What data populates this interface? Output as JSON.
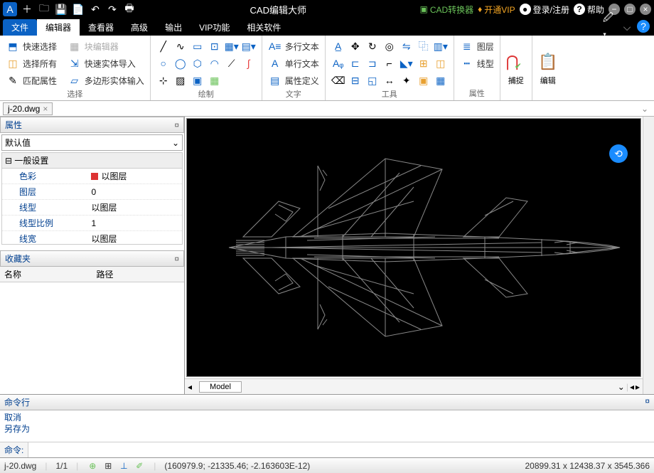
{
  "title": "CAD编辑大师",
  "titlebar_links": {
    "converter": "CAD转换器",
    "vip": "开通VIP",
    "login": "登录/注册",
    "help": "帮助"
  },
  "menu": {
    "tabs": [
      "文件",
      "编辑器",
      "查看器",
      "高级",
      "输出",
      "VIP功能",
      "相关软件"
    ],
    "active_index": 0,
    "selected_index": 1
  },
  "ribbon": {
    "select": {
      "name": "选择",
      "quick_select": "快速选择",
      "select_all": "选择所有",
      "match_prop": "匹配属性",
      "block_editor": "块编辑器",
      "quick_import": "快速实体导入",
      "poly_input": "多边形实体输入"
    },
    "draw": {
      "name": "绘制"
    },
    "text": {
      "name": "文字",
      "multiline": "多行文本",
      "singleline": "单行文本",
      "attr_def": "属性定义"
    },
    "tools": {
      "name": "工具"
    },
    "props": {
      "name": "属性",
      "layer": "图层",
      "linetype": "线型"
    },
    "snap": {
      "name": "捕捉"
    },
    "edit": {
      "name": "编辑"
    }
  },
  "file_tab": "j-20.dwg",
  "panels": {
    "props_title": "属性",
    "default_val": "默认值",
    "section": "一般设置",
    "rows": [
      {
        "k": "色彩",
        "v": "以图层",
        "swatch": true
      },
      {
        "k": "图层",
        "v": "0"
      },
      {
        "k": "线型",
        "v": "以图层"
      },
      {
        "k": "线型比例",
        "v": "1"
      },
      {
        "k": "线宽",
        "v": "以图层"
      }
    ],
    "fav_title": "收藏夹",
    "fav_cols": [
      "名称",
      "路径"
    ]
  },
  "model_tab": "Model",
  "cmd": {
    "title": "命令行",
    "history": [
      "取消",
      "另存为"
    ],
    "prompt": "命令:"
  },
  "status": {
    "file": "j-20.dwg",
    "page": "1/1",
    "coords": "(160979.9; -21335.46; -2.163603E-12)",
    "dims": "20899.31 x 12438.37 x 3545.366"
  },
  "colors": {
    "accent": "#0b62c4",
    "wire": "#888888",
    "wire_red": "#e84040",
    "wire_yellow": "#e8c040"
  }
}
